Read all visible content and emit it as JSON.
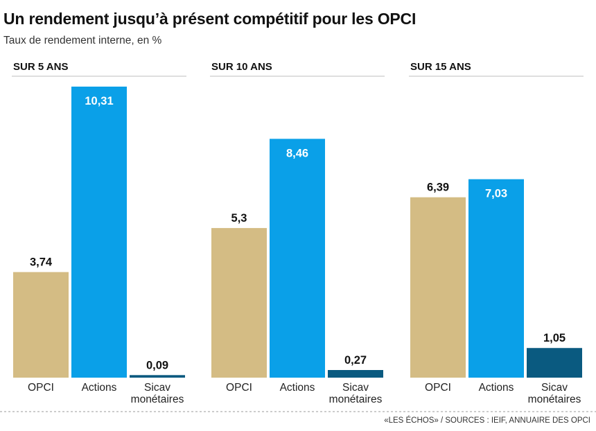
{
  "title": "Un rendement jusqu’à présent compétitif pour les OPCI",
  "subtitle": "Taux de rendement interne, en %",
  "source": "«LES ÉCHOS» / SOURCES : IEIF, ANNUAIRE DES OPCI",
  "colors": {
    "OPCI": "#d4bc84",
    "Actions": "#0aa0e8",
    "Sicav": "#0a5a80"
  },
  "chart_data": [
    {
      "type": "bar",
      "title": "SUR 5 ANS",
      "categories": [
        "OPCI",
        "Actions",
        "Sicav monétaires"
      ],
      "values": [
        3.74,
        10.31,
        0.09
      ],
      "value_labels": [
        "3,74",
        "10,31",
        "0,09"
      ],
      "ylim": [
        0,
        10.31
      ]
    },
    {
      "type": "bar",
      "title": "SUR 10 ANS",
      "categories": [
        "OPCI",
        "Actions",
        "Sicav monétaires"
      ],
      "values": [
        5.3,
        8.46,
        0.27
      ],
      "value_labels": [
        "5,3",
        "8,46",
        "0,27"
      ],
      "ylim": [
        0,
        10.31
      ]
    },
    {
      "type": "bar",
      "title": "SUR 15 ANS",
      "categories": [
        "OPCI",
        "Actions",
        "Sicav monétaires"
      ],
      "values": [
        6.39,
        7.03,
        1.05
      ],
      "value_labels": [
        "6,39",
        "7,03",
        "1,05"
      ],
      "ylim": [
        0,
        10.31
      ]
    }
  ]
}
